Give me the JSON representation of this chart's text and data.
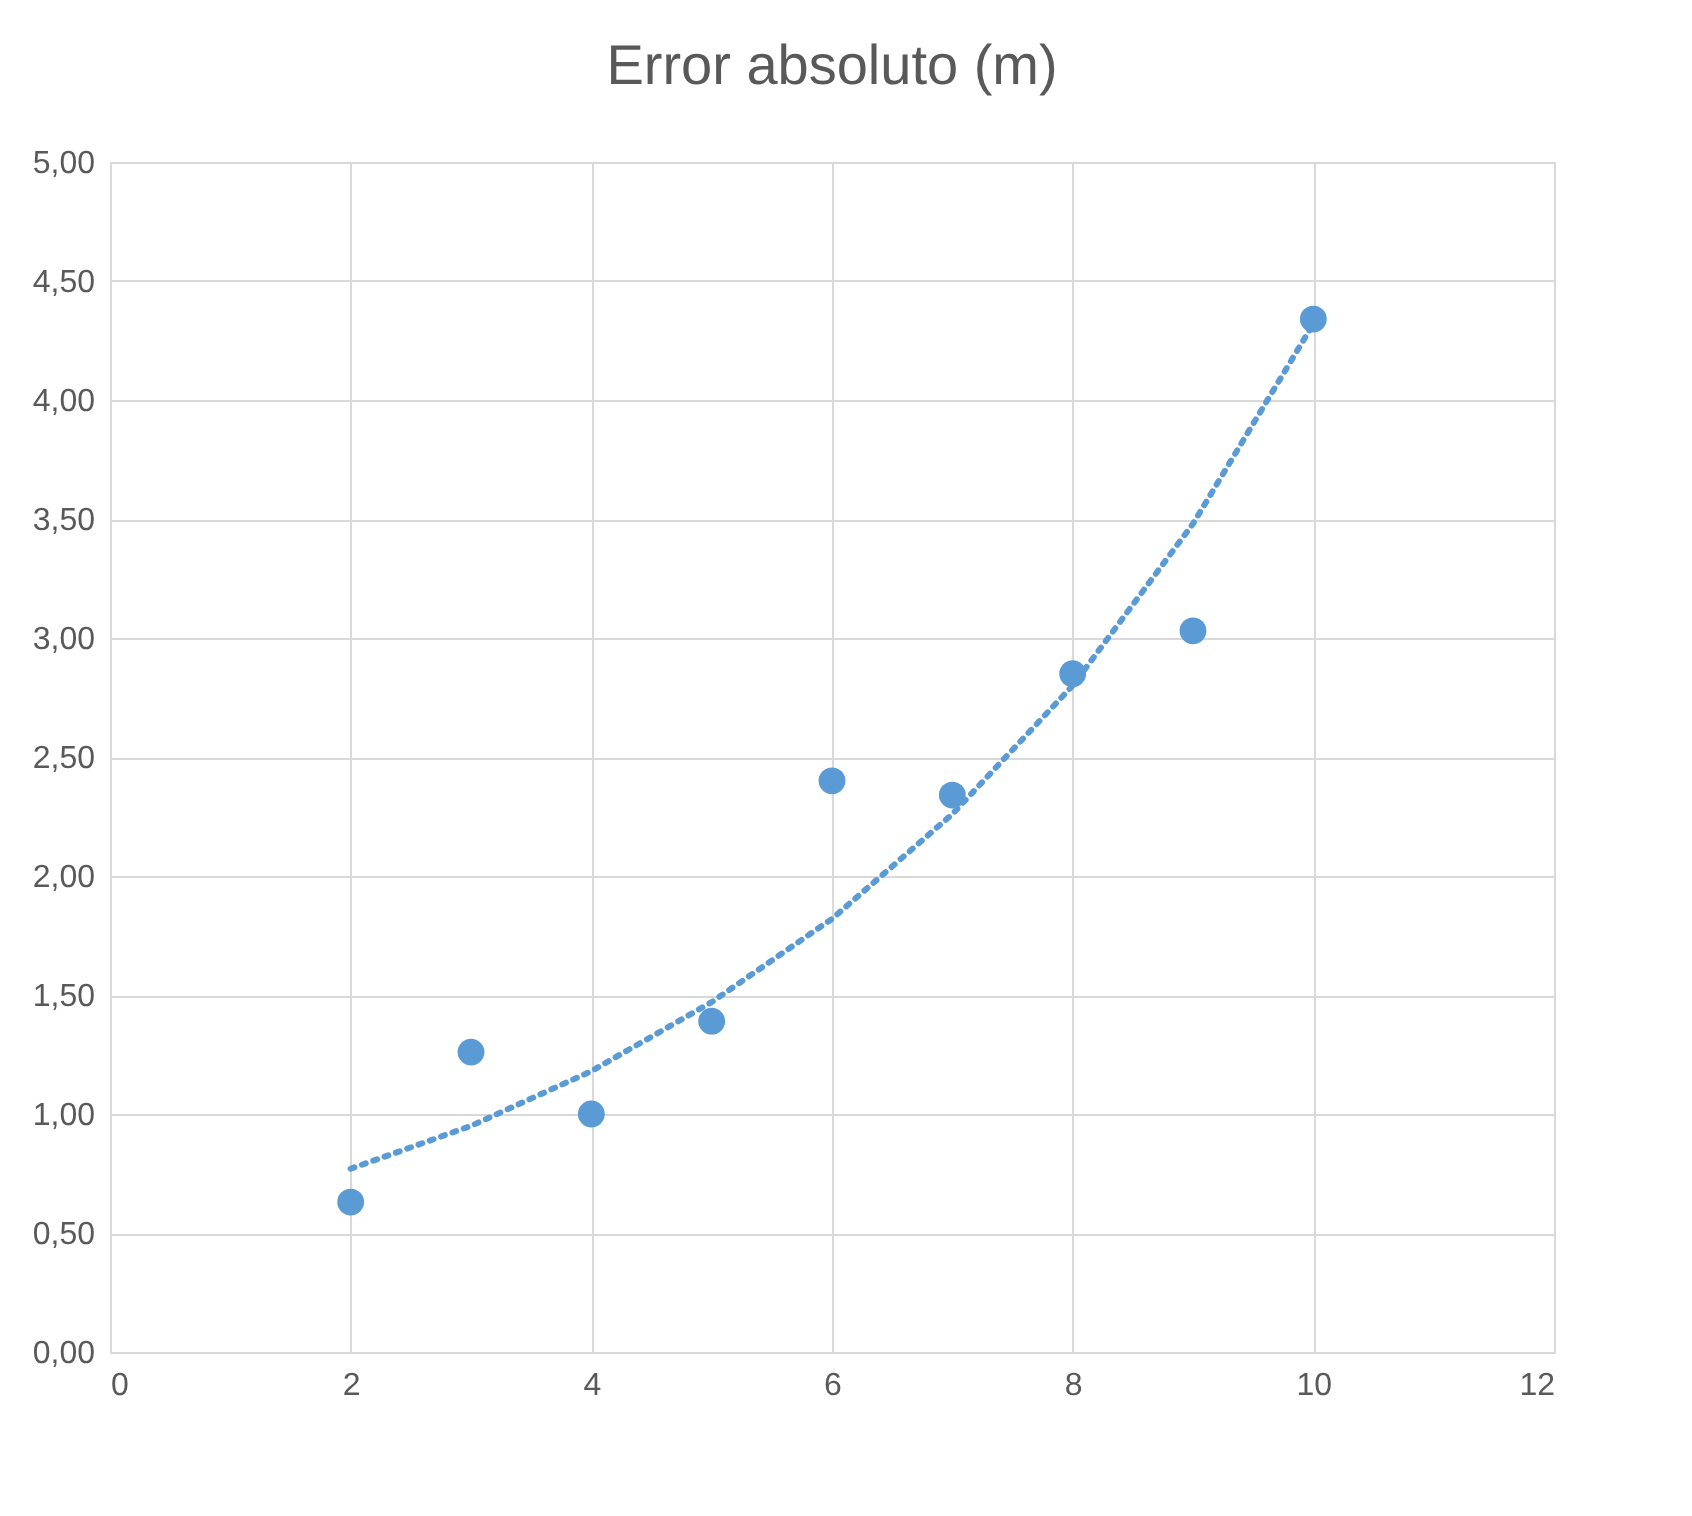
{
  "chart_data": {
    "type": "scatter",
    "title": "Error absoluto (m)",
    "x": [
      2,
      3,
      4,
      5,
      6,
      7,
      8,
      9,
      10
    ],
    "series": [
      {
        "color": "#5b9bd5",
        "marker": "circle",
        "values": [
          0.63,
          1.26,
          1.0,
          1.39,
          2.4,
          2.34,
          2.85,
          3.03,
          4.34
        ]
      },
      {
        "type": "line",
        "color": "#5b9bd5",
        "line_style": "dotted",
        "marker": "none",
        "x": [
          2,
          3,
          4,
          5,
          6,
          7,
          8,
          9,
          10
        ],
        "values": [
          0.77,
          0.95,
          1.18,
          1.47,
          1.82,
          2.26,
          2.8,
          3.48,
          4.32
        ]
      }
    ],
    "xlim": [
      0,
      12
    ],
    "xticks": [
      0,
      2,
      4,
      6,
      8,
      10,
      12
    ],
    "ylim": [
      0,
      5
    ],
    "yticks": [
      {
        "value": 0,
        "label": "0,00"
      },
      {
        "value": 0.5,
        "label": "0,50"
      },
      {
        "value": 1,
        "label": "1,00"
      },
      {
        "value": 1.5,
        "label": "1,50"
      },
      {
        "value": 2,
        "label": "2,00"
      },
      {
        "value": 2.5,
        "label": "2,50"
      },
      {
        "value": 3,
        "label": "3,00"
      },
      {
        "value": 3.5,
        "label": "3,50"
      },
      {
        "value": 4,
        "label": "4,00"
      },
      {
        "value": 4.5,
        "label": "4,50"
      },
      {
        "value": 5,
        "label": "5,00"
      }
    ],
    "grid": true
  }
}
